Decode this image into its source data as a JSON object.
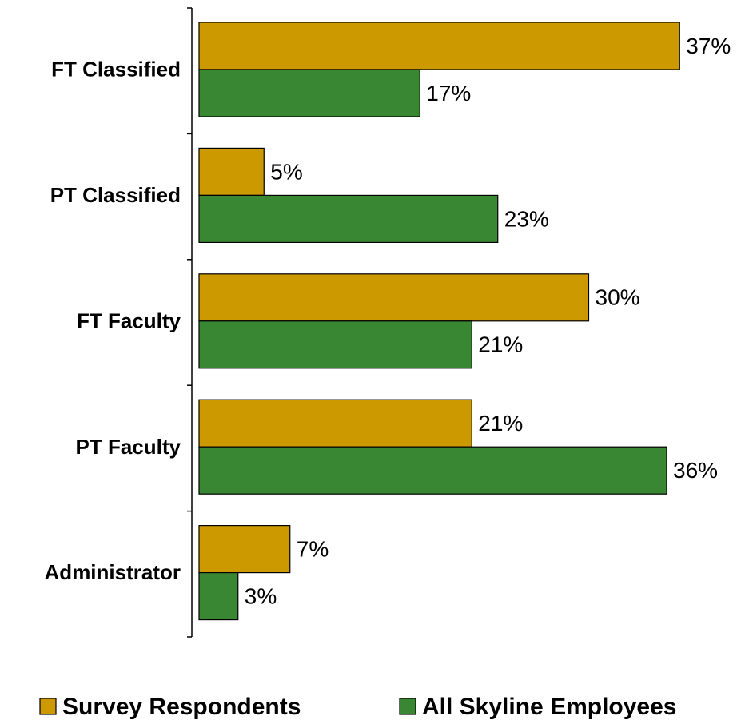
{
  "chart_data": {
    "type": "bar",
    "orientation": "horizontal",
    "categories": [
      "FT Classified",
      "PT Classified",
      "FT Faculty",
      "PT Faculty",
      "Administrator"
    ],
    "series": [
      {
        "name": "Survey Respondents",
        "color": "#cc9900",
        "values": [
          37,
          5,
          30,
          21,
          7
        ],
        "value_labels": [
          "37%",
          "5%",
          "30%",
          "21%",
          "7%"
        ]
      },
      {
        "name": "All Skyline Employees",
        "color": "#3a8733",
        "values": [
          17,
          23,
          21,
          36,
          3
        ],
        "value_labels": [
          "17%",
          "23%",
          "21%",
          "36%",
          "3%"
        ]
      }
    ],
    "xlim": [
      0,
      40
    ],
    "legend": "bottom"
  }
}
